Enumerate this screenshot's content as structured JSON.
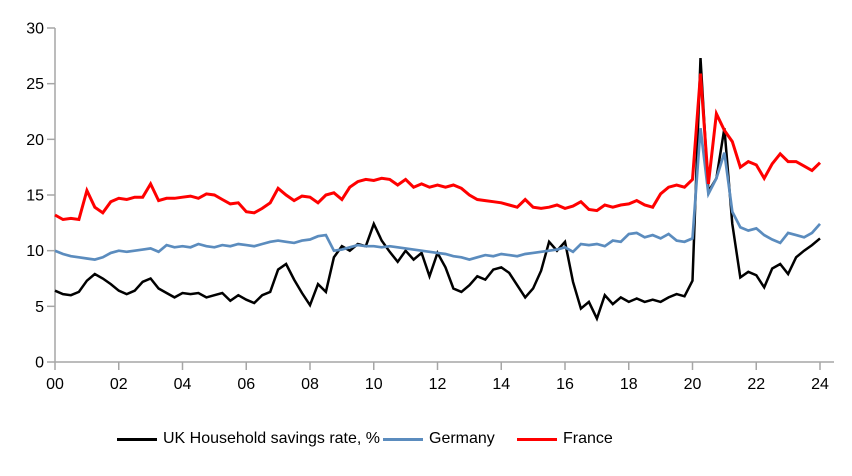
{
  "figure": {
    "background": "#ffffff",
    "axis_color": "#a6a6a6",
    "label_color": "#000000"
  },
  "chart_data": {
    "type": "line",
    "frequency": "quarterly",
    "x_start_label": "00",
    "x_end_label": "24",
    "x_tick_labels": [
      "00",
      "02",
      "04",
      "06",
      "08",
      "10",
      "12",
      "14",
      "16",
      "18",
      "20",
      "22",
      "24"
    ],
    "y_tick_labels": [
      "0",
      "5",
      "10",
      "15",
      "20",
      "25",
      "30"
    ],
    "y_ticks": [
      0,
      5,
      10,
      15,
      20,
      25,
      30
    ],
    "ylim": [
      0,
      30
    ],
    "grid": false,
    "legend_position": "bottom",
    "series": [
      {
        "name": "UK Household savings rate, %",
        "color": "#000000",
        "values": [
          6.4,
          6.1,
          6.0,
          6.3,
          7.3,
          7.9,
          7.5,
          7.0,
          6.4,
          6.1,
          6.4,
          7.2,
          7.5,
          6.6,
          6.2,
          5.8,
          6.2,
          6.1,
          6.2,
          5.8,
          6.0,
          6.2,
          5.5,
          6.0,
          5.6,
          5.3,
          6.0,
          6.3,
          8.3,
          8.8,
          7.4,
          6.2,
          5.1,
          7.0,
          6.3,
          9.4,
          10.4,
          10.0,
          10.6,
          10.4,
          12.4,
          10.9,
          9.9,
          9.0,
          10.0,
          9.2,
          9.8,
          7.7,
          9.8,
          8.5,
          6.6,
          6.3,
          6.9,
          7.7,
          7.4,
          8.3,
          8.5,
          8.0,
          6.9,
          5.8,
          6.6,
          8.2,
          10.8,
          10.0,
          10.8,
          7.2,
          4.8,
          5.4,
          3.9,
          6.0,
          5.2,
          5.8,
          5.4,
          5.7,
          5.4,
          5.6,
          5.4,
          5.8,
          6.1,
          5.9,
          7.3,
          27.3,
          15.3,
          16.5,
          21.0,
          12.4,
          7.6,
          8.1,
          7.8,
          6.7,
          8.4,
          8.8,
          7.9,
          9.4,
          10.0,
          10.5,
          11.1
        ]
      },
      {
        "name": "Germany",
        "color": "#5b8cbe",
        "values": [
          10.0,
          9.7,
          9.5,
          9.4,
          9.3,
          9.2,
          9.4,
          9.8,
          10.0,
          9.9,
          10.0,
          10.1,
          10.2,
          9.9,
          10.5,
          10.3,
          10.4,
          10.3,
          10.6,
          10.4,
          10.3,
          10.5,
          10.4,
          10.6,
          10.5,
          10.4,
          10.6,
          10.8,
          10.9,
          10.8,
          10.7,
          10.9,
          11.0,
          11.3,
          11.4,
          10.0,
          10.1,
          10.3,
          10.5,
          10.4,
          10.4,
          10.3,
          10.4,
          10.3,
          10.2,
          10.1,
          10.0,
          9.9,
          9.8,
          9.7,
          9.5,
          9.4,
          9.2,
          9.4,
          9.6,
          9.5,
          9.7,
          9.6,
          9.5,
          9.7,
          9.8,
          9.9,
          10.0,
          10.1,
          10.3,
          9.9,
          10.6,
          10.5,
          10.6,
          10.4,
          10.9,
          10.8,
          11.5,
          11.6,
          11.2,
          11.4,
          11.1,
          11.5,
          10.9,
          10.8,
          11.1,
          21.0,
          15.1,
          16.5,
          18.8,
          13.5,
          12.1,
          11.8,
          12.0,
          11.4,
          11.0,
          10.7,
          11.6,
          11.4,
          11.2,
          11.6,
          12.4
        ]
      },
      {
        "name": "France",
        "color": "#ff0000",
        "values": [
          13.2,
          12.8,
          12.9,
          12.8,
          15.4,
          13.9,
          13.4,
          14.4,
          14.7,
          14.6,
          14.8,
          14.8,
          16.0,
          14.5,
          14.7,
          14.7,
          14.8,
          14.9,
          14.7,
          15.1,
          15.0,
          14.6,
          14.2,
          14.3,
          13.5,
          13.4,
          13.8,
          14.3,
          15.6,
          15.0,
          14.5,
          14.9,
          14.8,
          14.3,
          15.0,
          15.2,
          14.6,
          15.7,
          16.2,
          16.4,
          16.3,
          16.5,
          16.4,
          15.9,
          16.4,
          15.7,
          16.0,
          15.7,
          15.9,
          15.7,
          15.9,
          15.6,
          15.0,
          14.6,
          14.5,
          14.4,
          14.3,
          14.1,
          13.9,
          14.6,
          13.9,
          13.8,
          13.9,
          14.1,
          13.8,
          14.0,
          14.4,
          13.7,
          13.6,
          14.1,
          13.9,
          14.1,
          14.2,
          14.5,
          14.1,
          13.9,
          15.1,
          15.7,
          15.9,
          15.7,
          16.4,
          25.9,
          16.0,
          22.3,
          20.8,
          19.8,
          17.5,
          18.0,
          17.7,
          16.5,
          17.8,
          18.7,
          18.0,
          18.0,
          17.6,
          17.2,
          17.9
        ]
      }
    ]
  }
}
